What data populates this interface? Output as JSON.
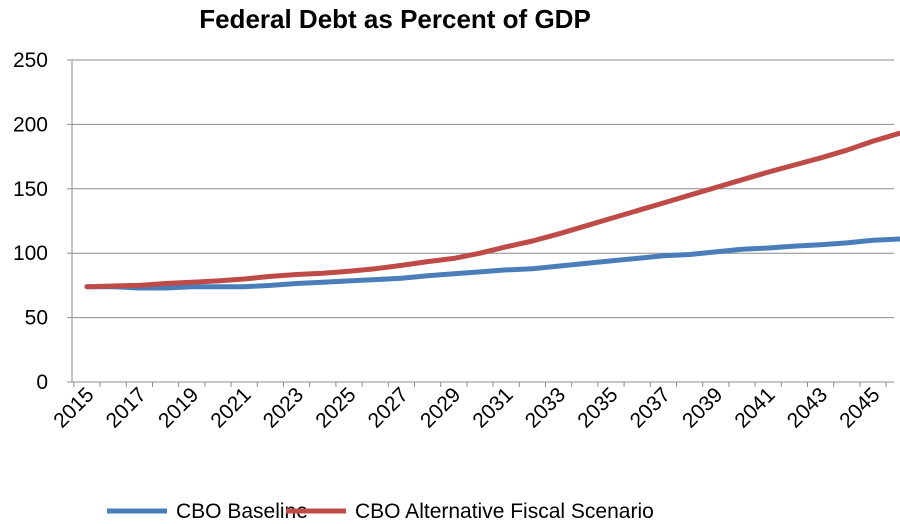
{
  "chart_data": {
    "type": "line",
    "title": "Federal Debt as Percent of GDP",
    "xlabel": "",
    "ylabel": "",
    "ylim": [
      0,
      250
    ],
    "yticks": [
      0,
      50,
      100,
      150,
      200,
      250
    ],
    "x": [
      2015,
      2016,
      2017,
      2018,
      2019,
      2020,
      2021,
      2022,
      2023,
      2024,
      2025,
      2026,
      2027,
      2028,
      2029,
      2030,
      2031,
      2032,
      2033,
      2034,
      2035,
      2036,
      2037,
      2038,
      2039,
      2040,
      2041,
      2042,
      2043,
      2044,
      2045,
      2046
    ],
    "xtick_labels": [
      "2015",
      "2017",
      "2019",
      "2021",
      "2023",
      "2025",
      "2027",
      "2029",
      "2031",
      "2033",
      "2035",
      "2037",
      "2039",
      "2041",
      "2043",
      "2045"
    ],
    "grid": "horizontal",
    "legend_position": "bottom",
    "series": [
      {
        "name": "CBO Baseline",
        "color": "#4a7ebb",
        "values": [
          74,
          74,
          73,
          73,
          74,
          74,
          74,
          75,
          76.5,
          77.5,
          78.5,
          79.5,
          80.5,
          82.5,
          84,
          85.5,
          87,
          88,
          90,
          92,
          94,
          96,
          98,
          99,
          101,
          103,
          104,
          105.5,
          106.5,
          108,
          110,
          111
        ]
      },
      {
        "name": "CBO Alternative Fiscal Scenario",
        "color": "#be4b48",
        "values": [
          74,
          74.5,
          75,
          76.5,
          77.5,
          78.5,
          80,
          82,
          83.5,
          84.5,
          86,
          88,
          90.5,
          93.5,
          96,
          100,
          105,
          109.5,
          115,
          121,
          127,
          133,
          139,
          145,
          151,
          157,
          163,
          168.5,
          174,
          180,
          187,
          193
        ]
      }
    ]
  }
}
